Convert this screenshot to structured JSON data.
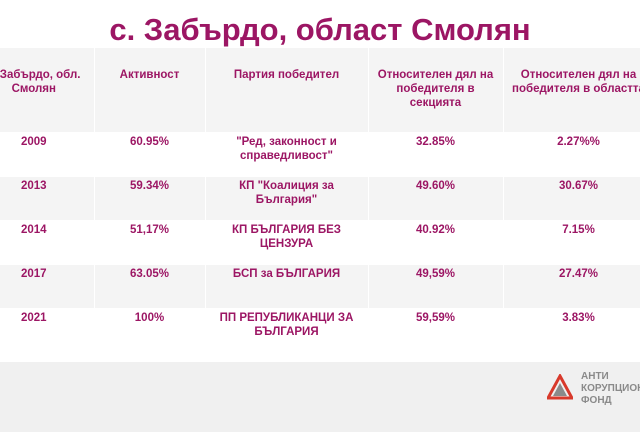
{
  "title": "с. Забърдо, област Смолян",
  "table": {
    "headers": [
      "с. Забърдо, обл. Смолян",
      "Активност",
      "Партия победител",
      "Относителен дял на победителя в секцията",
      "Относителен дял на победителя в областта"
    ],
    "rows": [
      [
        "2009",
        "60.95%",
        "\"Ред, законност и справедливост\"",
        "32.85%",
        "2.27%%"
      ],
      [
        "2013",
        "59.34%",
        "КП \"Коалиция за България\"",
        "49.60%",
        "30.67%"
      ],
      [
        "2014",
        "51,17%",
        "КП БЪЛГАРИЯ БЕЗ ЦЕНЗУРА",
        "40.92%",
        "7.15%"
      ],
      [
        "2017",
        "63.05%",
        "БСП за БЪЛГАРИЯ",
        "49,59%",
        "27.47%"
      ],
      [
        "2021",
        "100%",
        "ПП РЕПУБЛИКАНЦИ ЗА БЪЛГАРИЯ",
        "59,59%",
        "3.83%"
      ]
    ]
  },
  "logo": {
    "lines": [
      "АНТИ",
      "КОРУПЦИОНЕН",
      "ФОНД"
    ]
  },
  "colors": {
    "accent": "#9c1664",
    "row_shade": "#f4f4f4",
    "logo_red": "#d8392b",
    "logo_gray": "#8a8a8a"
  }
}
